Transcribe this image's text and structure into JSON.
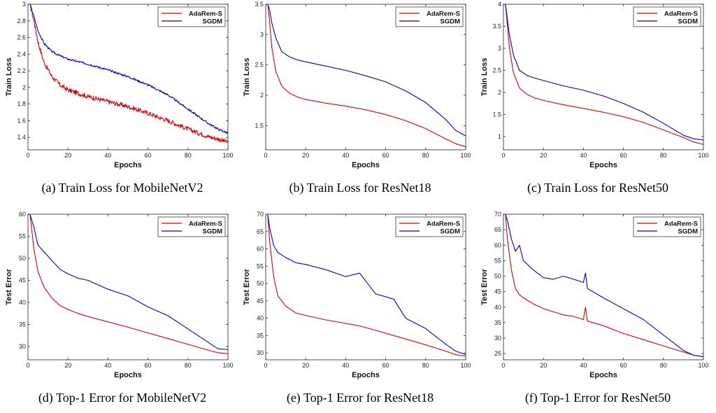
{
  "figure": {
    "colors": {
      "adarem": "#e00000",
      "sgdm": "#0000d8",
      "axis": "#222222"
    }
  },
  "chart_data": [
    {
      "type": "line",
      "caption": "(a)  Train Loss for MobileNetV2",
      "xlabel": "Epochs",
      "ylabel": "Train Loss",
      "xlim": [
        0,
        100
      ],
      "ylim": [
        1.25,
        3
      ],
      "xticks": [
        0,
        20,
        40,
        60,
        80,
        100
      ],
      "yticks": [
        1.4,
        1.6,
        1.8,
        2,
        2.2,
        2.4,
        2.6,
        2.8,
        3
      ],
      "legend": "top-right",
      "noisy": true,
      "x": [
        1,
        3,
        5,
        8,
        12,
        16,
        20,
        25,
        30,
        40,
        50,
        60,
        70,
        80,
        90,
        95,
        100
      ],
      "series": [
        {
          "name": "AdaRem-S",
          "color": "#e00000",
          "values": [
            3.0,
            2.8,
            2.55,
            2.3,
            2.13,
            2.03,
            1.97,
            1.93,
            1.89,
            1.83,
            1.77,
            1.69,
            1.6,
            1.5,
            1.41,
            1.38,
            1.34
          ]
        },
        {
          "name": "SGDM",
          "color": "#0000d8",
          "values": [
            3.0,
            2.85,
            2.68,
            2.53,
            2.43,
            2.38,
            2.34,
            2.31,
            2.28,
            2.21,
            2.13,
            2.03,
            1.91,
            1.74,
            1.57,
            1.5,
            1.45
          ]
        }
      ]
    },
    {
      "type": "line",
      "caption": "(b)  Train Loss for ResNet18",
      "xlabel": "Epochs",
      "ylabel": "Train Loss",
      "xlim": [
        0,
        100
      ],
      "ylim": [
        1.1,
        3.5
      ],
      "xticks": [
        0,
        20,
        40,
        60,
        80,
        100
      ],
      "yticks": [
        1.5,
        2,
        2.5,
        3,
        3.5
      ],
      "legend": "top-right",
      "noisy": false,
      "x": [
        1,
        2,
        3,
        5,
        8,
        12,
        16,
        20,
        30,
        40,
        50,
        60,
        70,
        80,
        90,
        95,
        100
      ],
      "series": [
        {
          "name": "AdaRem-S",
          "color": "#e00000",
          "values": [
            3.5,
            3.2,
            2.8,
            2.4,
            2.15,
            2.03,
            1.97,
            1.93,
            1.87,
            1.82,
            1.76,
            1.68,
            1.58,
            1.45,
            1.28,
            1.2,
            1.15
          ]
        },
        {
          "name": "SGDM",
          "color": "#0000d8",
          "values": [
            3.5,
            3.4,
            3.2,
            2.95,
            2.72,
            2.63,
            2.58,
            2.55,
            2.48,
            2.41,
            2.32,
            2.22,
            2.07,
            1.88,
            1.6,
            1.42,
            1.33
          ]
        }
      ]
    },
    {
      "type": "line",
      "caption": "(c)  Train Loss for ResNet50",
      "xlabel": "Epochs",
      "ylabel": "Train Loss",
      "xlim": [
        0,
        100
      ],
      "ylim": [
        0.7,
        4
      ],
      "xticks": [
        0,
        20,
        40,
        60,
        80,
        100
      ],
      "yticks": [
        1,
        1.5,
        2,
        2.5,
        3,
        3.5,
        4
      ],
      "legend": "top-right",
      "noisy": false,
      "x": [
        1,
        3,
        5,
        8,
        12,
        16,
        20,
        30,
        40,
        50,
        60,
        70,
        80,
        90,
        95,
        100
      ],
      "series": [
        {
          "name": "AdaRem-S",
          "color": "#e00000",
          "values": [
            4.0,
            3.0,
            2.45,
            2.1,
            1.95,
            1.87,
            1.82,
            1.72,
            1.64,
            1.55,
            1.45,
            1.32,
            1.15,
            0.98,
            0.88,
            0.82
          ]
        },
        {
          "name": "SGDM",
          "color": "#0000d8",
          "values": [
            4.0,
            3.3,
            2.85,
            2.5,
            2.38,
            2.32,
            2.27,
            2.15,
            2.05,
            1.92,
            1.75,
            1.55,
            1.3,
            1.03,
            0.95,
            0.92
          ]
        }
      ]
    },
    {
      "type": "line",
      "caption": "(d)  Top-1 Error for MobileNetV2",
      "xlabel": "Epochs",
      "ylabel": "Test Error",
      "xlim": [
        0,
        100
      ],
      "ylim": [
        27,
        60
      ],
      "xticks": [
        0,
        20,
        40,
        60,
        80,
        100
      ],
      "yticks": [
        30,
        35,
        40,
        45,
        50,
        55,
        60
      ],
      "legend": "top-right",
      "noisy": false,
      "x": [
        1,
        3,
        5,
        8,
        12,
        16,
        20,
        25,
        30,
        40,
        50,
        60,
        70,
        80,
        90,
        95,
        100
      ],
      "series": [
        {
          "name": "AdaRem-S",
          "color": "#e00000",
          "values": [
            60.0,
            52.0,
            47.0,
            43.5,
            41.0,
            39.3,
            38.4,
            37.5,
            36.8,
            35.6,
            34.4,
            33.1,
            31.8,
            30.5,
            29.2,
            28.6,
            28.4
          ]
        },
        {
          "name": "SGDM",
          "color": "#0000d8",
          "values": [
            60.0,
            57.0,
            53.0,
            51.5,
            49.5,
            47.5,
            46.5,
            45.5,
            45.0,
            43.0,
            41.5,
            39.0,
            37.0,
            34.0,
            31.0,
            29.5,
            29.3
          ]
        }
      ]
    },
    {
      "type": "line",
      "caption": "(e)  Top-1 Error for ResNet18",
      "xlabel": "Epochs",
      "ylabel": "Test Error",
      "xlim": [
        0,
        100
      ],
      "ylim": [
        28,
        70
      ],
      "xticks": [
        0,
        20,
        40,
        60,
        80,
        100
      ],
      "yticks": [
        30,
        35,
        40,
        45,
        50,
        55,
        60,
        65,
        70
      ],
      "legend": "top-right",
      "noisy": false,
      "x": [
        1,
        2,
        4,
        6,
        10,
        15,
        20,
        30,
        40,
        47,
        55,
        64,
        70,
        80,
        90,
        95,
        100
      ],
      "series": [
        {
          "name": "AdaRem-S",
          "color": "#e00000",
          "values": [
            70.0,
            62.0,
            52.0,
            46.5,
            43.5,
            41.5,
            40.8,
            39.5,
            38.5,
            37.8,
            36.5,
            35.0,
            34.0,
            32.3,
            30.5,
            29.5,
            29.0
          ]
        },
        {
          "name": "SGDM",
          "color": "#0000d8",
          "values": [
            70.0,
            66.0,
            61.0,
            59.0,
            57.5,
            56.0,
            55.5,
            54.0,
            52.0,
            53.0,
            47.0,
            45.5,
            40.0,
            37.0,
            32.5,
            30.5,
            29.5
          ]
        }
      ]
    },
    {
      "type": "line",
      "caption": "(f)  Top-1 Error for ResNet50",
      "xlabel": "Epochs",
      "ylabel": "Test Error",
      "xlim": [
        0,
        100
      ],
      "ylim": [
        23,
        70
      ],
      "xticks": [
        0,
        20,
        40,
        60,
        80,
        100
      ],
      "yticks": [
        25,
        30,
        35,
        40,
        45,
        50,
        55,
        60,
        65,
        70
      ],
      "legend": "top-right",
      "noisy": false,
      "x": [
        1,
        2,
        4,
        6,
        8,
        10,
        15,
        20,
        25,
        30,
        35,
        40,
        41,
        42,
        50,
        60,
        70,
        80,
        90,
        95,
        100
      ],
      "series": [
        {
          "name": "AdaRem-S",
          "color": "#e00000",
          "values": [
            70.0,
            62.0,
            52.0,
            46.0,
            44.0,
            43.0,
            41.0,
            39.5,
            38.5,
            37.5,
            37.0,
            36.0,
            40.0,
            35.5,
            34.0,
            31.5,
            29.5,
            27.5,
            25.5,
            24.5,
            24.0
          ]
        },
        {
          "name": "SGDM",
          "color": "#0000d8",
          "values": [
            70.0,
            68.0,
            62.0,
            58.0,
            60.0,
            55.0,
            52.0,
            49.5,
            49.0,
            50.0,
            49.0,
            48.0,
            51.0,
            46.0,
            43.0,
            39.5,
            36.0,
            31.0,
            26.0,
            24.5,
            24.0
          ]
        }
      ]
    }
  ]
}
